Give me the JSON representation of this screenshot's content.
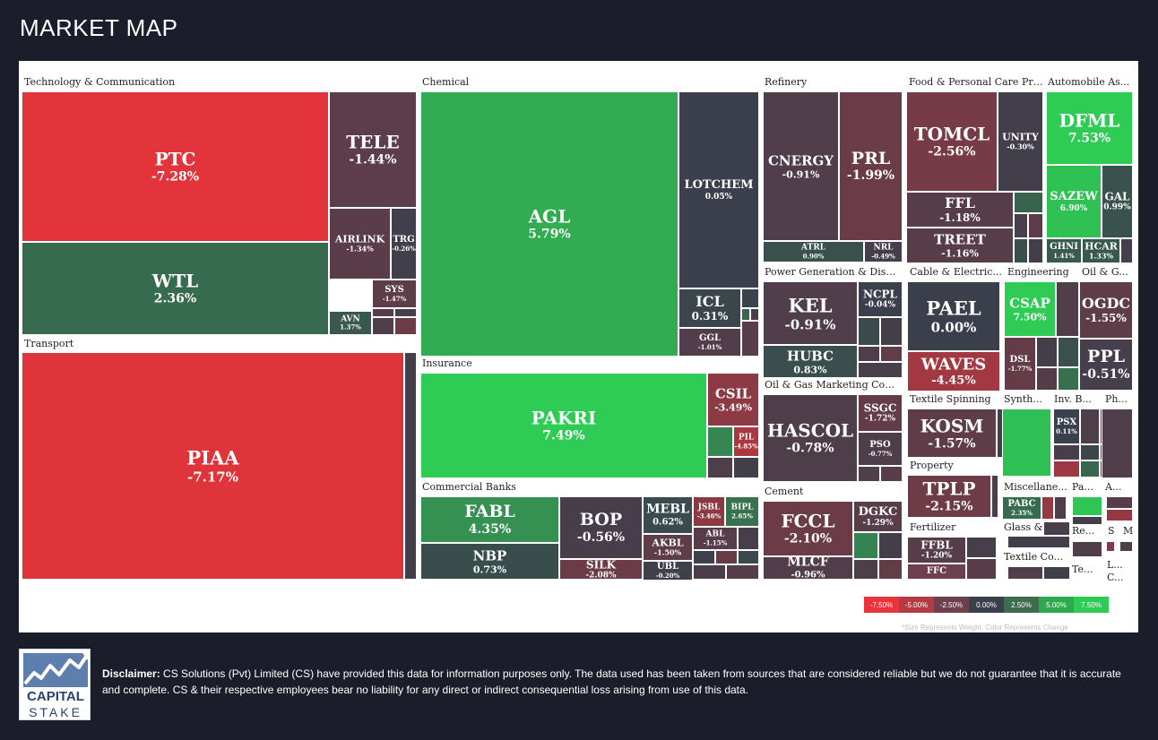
{
  "header": {
    "title": "MARKET MAP"
  },
  "chart_data": {
    "type": "treemap",
    "color_scale": {
      "min": -7.5,
      "max": 7.5,
      "negative": "#e8343a",
      "neutral": "#3b3f4c",
      "positive": "#2fcc55"
    },
    "sectors": [
      {
        "name": "Technology & Communication"
      },
      {
        "name": "Transport"
      },
      {
        "name": "Chemical"
      },
      {
        "name": "Insurance"
      },
      {
        "name": "Commercial Banks"
      },
      {
        "name": "Refinery"
      },
      {
        "name": "Power Generation & Distri..."
      },
      {
        "name": "Oil & Gas Marketing Comp..."
      },
      {
        "name": "Cement"
      },
      {
        "name": "Food & Personal Care Pro..."
      },
      {
        "name": "Automobile As..."
      },
      {
        "name": "Cable & Electric..."
      },
      {
        "name": "Engineering"
      },
      {
        "name": "Oil & G..."
      },
      {
        "name": "Textile Spinning"
      },
      {
        "name": "Synth..."
      },
      {
        "name": "Inv. B..."
      },
      {
        "name": "Ph..."
      },
      {
        "name": "Property"
      },
      {
        "name": "Miscellane..."
      },
      {
        "name": "Pa..."
      },
      {
        "name": "A..."
      },
      {
        "name": "Fertilizer"
      },
      {
        "name": "Glass & C..."
      },
      {
        "name": "Re..."
      },
      {
        "name": "S"
      },
      {
        "name": "M"
      },
      {
        "name": "Textile Co..."
      },
      {
        "name": "Te..."
      },
      {
        "name": "L..."
      },
      {
        "name": "C..."
      }
    ],
    "stocks": [
      {
        "symbol": "PTC",
        "change": -7.28,
        "change_label": "-7.28%"
      },
      {
        "symbol": "WTL",
        "change": 2.36,
        "change_label": "2.36%"
      },
      {
        "symbol": "TELE",
        "change": -1.44,
        "change_label": "-1.44%"
      },
      {
        "symbol": "AIRLINK",
        "change": -1.34,
        "change_label": "-1.34%"
      },
      {
        "symbol": "TRG",
        "change": -0.26,
        "change_label": "-0.26%"
      },
      {
        "symbol": "SYS",
        "change": -1.47,
        "change_label": "-1.47%"
      },
      {
        "symbol": "AVN",
        "change": 1.37,
        "change_label": "1.37%"
      },
      {
        "symbol": "PIAA",
        "change": -7.17,
        "change_label": "-7.17%"
      },
      {
        "symbol": "AGL",
        "change": 5.79,
        "change_label": "5.79%"
      },
      {
        "symbol": "LOTCHEM",
        "change": 0.05,
        "change_label": "0.05%"
      },
      {
        "symbol": "ICL",
        "change": 0.31,
        "change_label": "0.31%"
      },
      {
        "symbol": "GGL",
        "change": -1.01,
        "change_label": "-1.01%"
      },
      {
        "symbol": "PAKRI",
        "change": 7.49,
        "change_label": "7.49%"
      },
      {
        "symbol": "CSIL",
        "change": -3.49,
        "change_label": "-3.49%"
      },
      {
        "symbol": "PIL",
        "change": -4.85,
        "change_label": "-4.85%"
      },
      {
        "symbol": "FABL",
        "change": 4.35,
        "change_label": "4.35%"
      },
      {
        "symbol": "NBP",
        "change": 0.73,
        "change_label": "0.73%"
      },
      {
        "symbol": "BOP",
        "change": -0.56,
        "change_label": "-0.56%"
      },
      {
        "symbol": "SILK",
        "change": -2.08,
        "change_label": "-2.08%"
      },
      {
        "symbol": "MEBL",
        "change": 0.62,
        "change_label": "0.62%"
      },
      {
        "symbol": "AKBL",
        "change": -1.5,
        "change_label": "-1.50%"
      },
      {
        "symbol": "UBL",
        "change": -0.2,
        "change_label": "-0.20%"
      },
      {
        "symbol": "JSBL",
        "change": -3.46,
        "change_label": "-3.46%"
      },
      {
        "symbol": "BIPL",
        "change": 2.65,
        "change_label": "2.65%"
      },
      {
        "symbol": "ABL",
        "change": -1.15,
        "change_label": "-1.15%"
      },
      {
        "symbol": "CNERGY",
        "change": -0.91,
        "change_label": "-0.91%"
      },
      {
        "symbol": "PRL",
        "change": -1.99,
        "change_label": "-1.99%"
      },
      {
        "symbol": "ATRL",
        "change": 0.9,
        "change_label": "0.90%"
      },
      {
        "symbol": "NRL",
        "change": -0.49,
        "change_label": "-0.49%"
      },
      {
        "symbol": "KEL",
        "change": -0.91,
        "change_label": "-0.91%"
      },
      {
        "symbol": "NCPL",
        "change": -0.04,
        "change_label": "-0.04%"
      },
      {
        "symbol": "HUBC",
        "change": 0.83,
        "change_label": "0.83%"
      },
      {
        "symbol": "HASCOL",
        "change": -0.78,
        "change_label": "-0.78%"
      },
      {
        "symbol": "SSGC",
        "change": -1.72,
        "change_label": "-1.72%"
      },
      {
        "symbol": "PSO",
        "change": -0.77,
        "change_label": "-0.77%"
      },
      {
        "symbol": "FCCL",
        "change": -2.1,
        "change_label": "-2.10%"
      },
      {
        "symbol": "DGKC",
        "change": -1.29,
        "change_label": "-1.29%"
      },
      {
        "symbol": "MLCF",
        "change": -0.96,
        "change_label": "-0.96%"
      },
      {
        "symbol": "TOMCL",
        "change": -2.56,
        "change_label": "-2.56%"
      },
      {
        "symbol": "UNITY",
        "change": -0.3,
        "change_label": "-0.30%"
      },
      {
        "symbol": "FFL",
        "change": -1.18,
        "change_label": "-1.18%"
      },
      {
        "symbol": "TREET",
        "change": -1.16,
        "change_label": "-1.16%"
      },
      {
        "symbol": "DFML",
        "change": 7.53,
        "change_label": "7.53%"
      },
      {
        "symbol": "SAZEW",
        "change": 6.9,
        "change_label": "6.90%"
      },
      {
        "symbol": "GAL",
        "change": 0.99,
        "change_label": "0.99%"
      },
      {
        "symbol": "GHNI",
        "change": 1.41,
        "change_label": "1.41%"
      },
      {
        "symbol": "HCAR",
        "change": 1.33,
        "change_label": "1.33%"
      },
      {
        "symbol": "PAEL",
        "change": 0.0,
        "change_label": "0.00%"
      },
      {
        "symbol": "WAVES",
        "change": -4.45,
        "change_label": "-4.45%"
      },
      {
        "symbol": "CSAP",
        "change": 7.5,
        "change_label": "7.50%"
      },
      {
        "symbol": "DSL",
        "change": -1.77,
        "change_label": "-1.77%"
      },
      {
        "symbol": "OGDC",
        "change": -1.55,
        "change_label": "-1.55%"
      },
      {
        "symbol": "PPL",
        "change": -0.51,
        "change_label": "-0.51%"
      },
      {
        "symbol": "KOSM",
        "change": -1.57,
        "change_label": "-1.57%"
      },
      {
        "symbol": "PSX",
        "change": 0.11,
        "change_label": "0.11%"
      },
      {
        "symbol": "TPLP",
        "change": -2.15,
        "change_label": "-2.15%"
      },
      {
        "symbol": "PABC",
        "change": 2.35,
        "change_label": "2.35%"
      },
      {
        "symbol": "FFBL",
        "change": -1.2,
        "change_label": "-1.20%"
      },
      {
        "symbol": "FFC",
        "change": null,
        "change_label": ""
      }
    ],
    "legend": {
      "labels": [
        "-7.50%",
        "-5.00%",
        "-2.50%",
        "0.00%",
        "2.50%",
        "5.00%",
        "7.50%"
      ],
      "colors": [
        "#e8343a",
        "#b43a45",
        "#6e3f4d",
        "#3b3f4c",
        "#3f6b4f",
        "#30a84e",
        "#2fcc55"
      ]
    },
    "footnote": "*Size Represents Weight, Color Represents Change"
  },
  "footer": {
    "logo_line1": "CAPITAL",
    "logo_line2": "STAKE",
    "disclaimer_label": "Disclaimer:",
    "disclaimer_text": " CS Solutions (Pvt) Limited (CS) have provided this data for information purposes only. The data used has been taken from sources that are considered reliable but we do not guarantee that it is accurate and complete. CS & their respective employees bear no liability for any direct or indirect consequential loss arising from use of this data."
  }
}
